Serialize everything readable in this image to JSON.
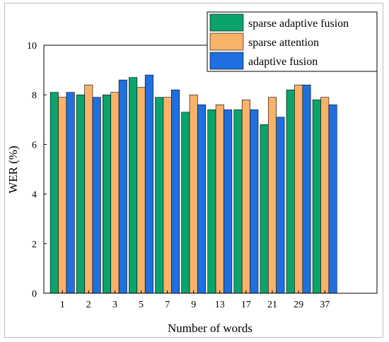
{
  "chart_data": {
    "type": "bar",
    "title": "",
    "xlabel": "Number of words",
    "ylabel": "WER (%)",
    "ylim": [
      0,
      10
    ],
    "yticks": [
      0,
      2,
      4,
      6,
      8,
      10
    ],
    "categories": [
      "1",
      "2",
      "3",
      "5",
      "7",
      "9",
      "13",
      "17",
      "21",
      "29",
      "37"
    ],
    "series": [
      {
        "name": "sparse adaptive fusion",
        "color": "#0aa36c",
        "values": [
          8.1,
          8.0,
          8.0,
          8.7,
          7.9,
          7.3,
          7.4,
          7.4,
          6.8,
          8.2,
          7.8
        ]
      },
      {
        "name": "sparse attention",
        "color": "#f8b26a",
        "values": [
          7.9,
          8.4,
          8.1,
          8.3,
          7.9,
          8.0,
          7.6,
          7.8,
          7.9,
          8.4,
          7.9
        ]
      },
      {
        "name": "adaptive fusion",
        "color": "#1f6fe0",
        "values": [
          8.1,
          7.9,
          8.6,
          8.8,
          8.2,
          7.6,
          7.4,
          7.4,
          7.1,
          8.4,
          7.6
        ]
      }
    ],
    "legend": "top-right",
    "grid": false
  }
}
